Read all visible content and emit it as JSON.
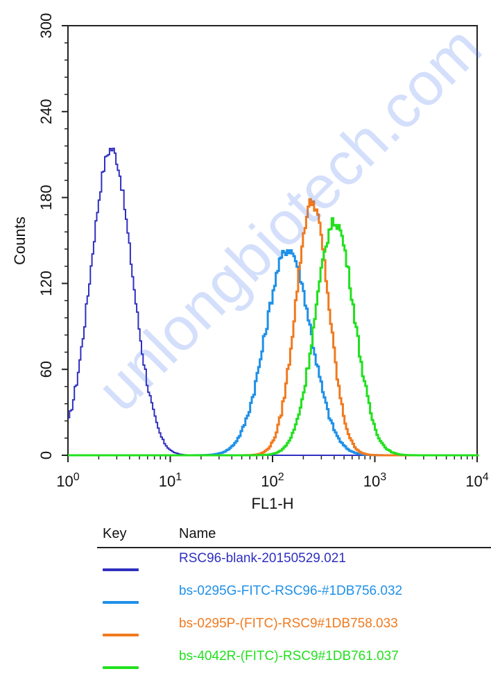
{
  "chart_data": {
    "type": "line",
    "title": "",
    "xlabel": "FL1-H",
    "ylabel": "Counts",
    "x_scale": "log",
    "xlim": [
      1,
      10000
    ],
    "ylim": [
      0,
      300
    ],
    "x_ticks": [
      {
        "base": "10",
        "exp": "0",
        "value": 1
      },
      {
        "base": "10",
        "exp": "1",
        "value": 10
      },
      {
        "base": "10",
        "exp": "2",
        "value": 100
      },
      {
        "base": "10",
        "exp": "3",
        "value": 1000
      },
      {
        "base": "10",
        "exp": "4",
        "value": 10000
      }
    ],
    "y_ticks": [
      "0",
      "60",
      "120",
      "180",
      "240",
      "300"
    ],
    "grid": false,
    "legend_header": {
      "key": "Key",
      "name": "Name"
    },
    "legend_position": "bottom",
    "series": [
      {
        "name": "RSC96-blank-20150529.021",
        "color": "#2f2fc0",
        "peak_x": 2.6,
        "peak_y": 214,
        "log_sigma": 0.2,
        "tail_step": true
      },
      {
        "name": "bs-0295G-FITC-RSC96-#1DB756.032",
        "color": "#1e90e8",
        "peak_x": 140,
        "peak_y": 144,
        "log_sigma": 0.22,
        "tail_step": false
      },
      {
        "name": "bs-0295P-(FITC)-RSC9#1DB758.033",
        "color": "#f07a1e",
        "peak_x": 240,
        "peak_y": 177,
        "log_sigma": 0.16,
        "tail_step": false
      },
      {
        "name": "bs-4042R-(FITC)-RSC9#1DB761.037",
        "color": "#22e01e",
        "peak_x": 400,
        "peak_y": 163,
        "log_sigma": 0.19,
        "tail_step": false
      }
    ]
  },
  "watermark": "unlongbiotech.com"
}
